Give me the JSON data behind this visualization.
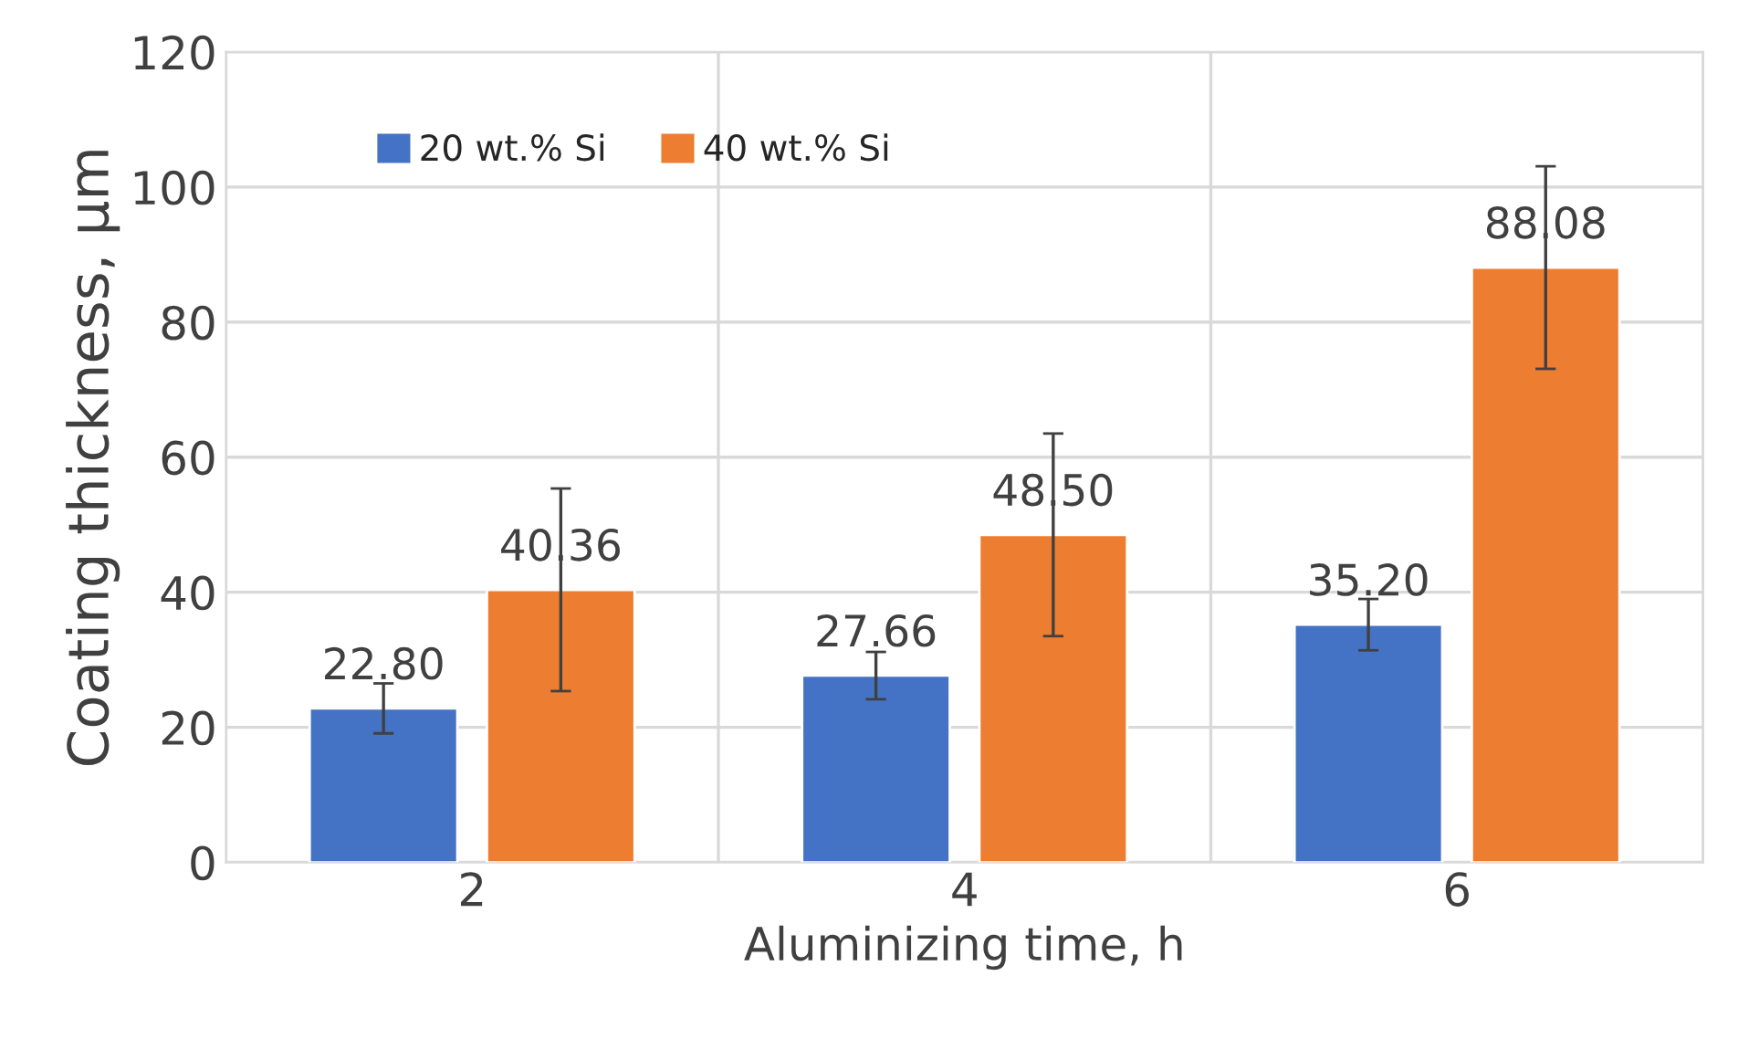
{
  "chart_data": {
    "type": "bar",
    "xlabel": "Aluminizing time, h",
    "ylabel": "Coating thickness, µm",
    "categories": [
      "2",
      "4",
      "6"
    ],
    "series": [
      {
        "name": "20 wt.% Si",
        "color": "#4472c4",
        "values": [
          22.8,
          27.66,
          35.2
        ],
        "value_labels": [
          "22.80",
          "27.66",
          "35.20"
        ],
        "errors": [
          3.7,
          3.5,
          3.8
        ]
      },
      {
        "name": "40 wt.% Si",
        "color": "#ed7d31",
        "values": [
          40.36,
          48.5,
          88.08
        ],
        "value_labels": [
          "40.36",
          "48.50",
          "88.08"
        ],
        "errors": [
          15,
          15,
          15
        ]
      }
    ],
    "ylim": [
      0,
      120
    ],
    "yticks": [
      0,
      20,
      40,
      60,
      80,
      100,
      120
    ],
    "grid": true,
    "legend": "top left"
  }
}
